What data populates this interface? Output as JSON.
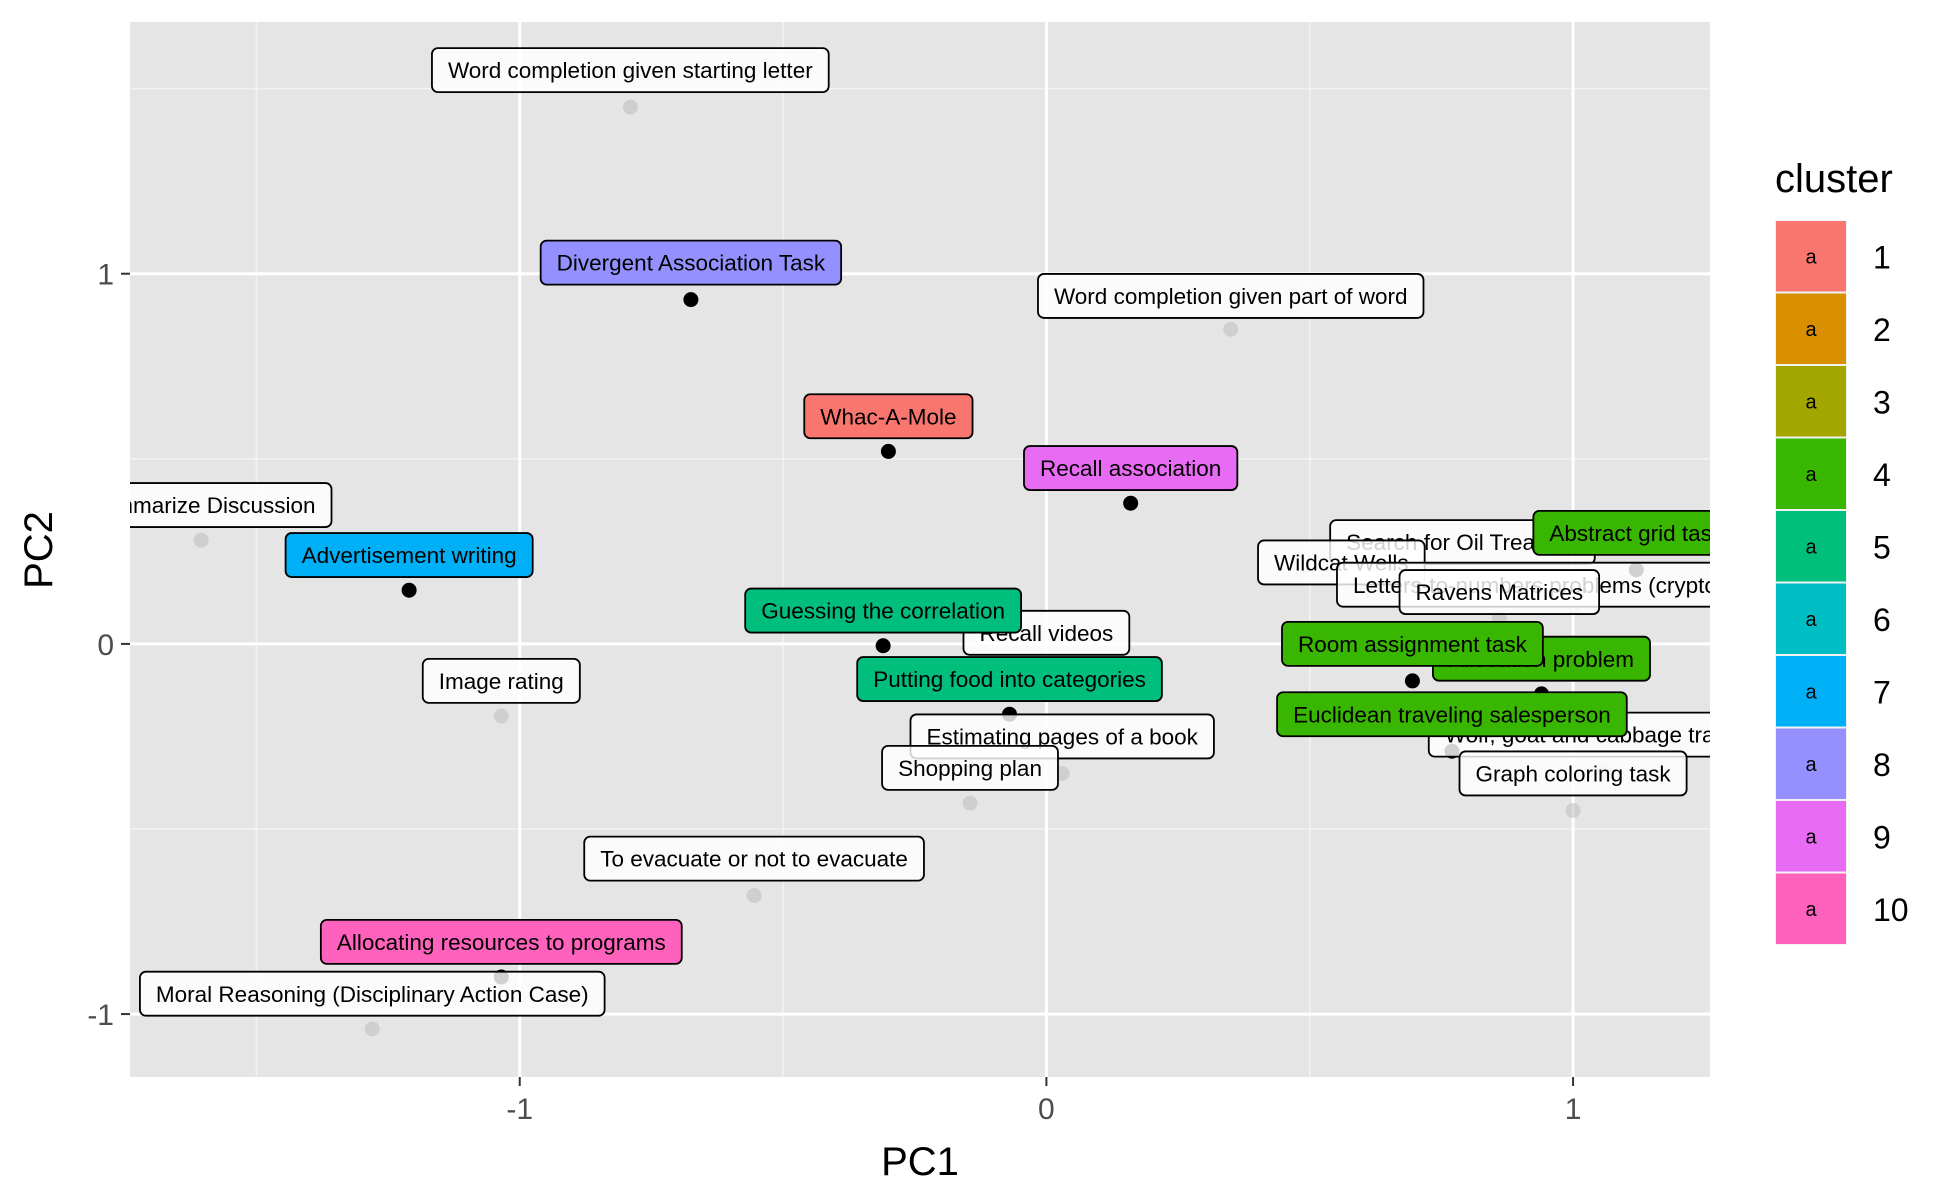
{
  "chart_data": {
    "type": "scatter",
    "xlabel": "PC1",
    "ylabel": "PC2",
    "xlim": [
      -1.74,
      1.26
    ],
    "ylim": [
      -1.17,
      1.68
    ],
    "xticks": [
      -1,
      0,
      1
    ],
    "yticks": [
      -1,
      0,
      1
    ],
    "xtick_labels": [
      "-1",
      "0",
      "1"
    ],
    "ytick_labels": [
      "-1",
      "0",
      "1"
    ],
    "grid": true,
    "legend": {
      "title": "cluster",
      "position": "right",
      "key_glyph": "a",
      "entries": [
        {
          "label": "1",
          "color": "#F8766D"
        },
        {
          "label": "2",
          "color": "#D89000"
        },
        {
          "label": "3",
          "color": "#A3A500"
        },
        {
          "label": "4",
          "color": "#39B600"
        },
        {
          "label": "5",
          "color": "#00BF7D"
        },
        {
          "label": "6",
          "color": "#00BFC4"
        },
        {
          "label": "7",
          "color": "#00B0F6"
        },
        {
          "label": "8",
          "color": "#9590FF"
        },
        {
          "label": "9",
          "color": "#E76BF3"
        },
        {
          "label": "10",
          "color": "#FF62BC"
        }
      ]
    },
    "points": [
      {
        "label": "Word completion given starting letter",
        "x": -0.79,
        "y": 1.45,
        "cluster": null
      },
      {
        "label": "Divergent Association Task",
        "x": -0.675,
        "y": 0.93,
        "cluster": "8"
      },
      {
        "label": "Word completion given part of word",
        "x": 0.35,
        "y": 0.85,
        "cluster": null
      },
      {
        "label": "Whac-A-Mole",
        "x": -0.3,
        "y": 0.52,
        "cluster": "1"
      },
      {
        "label": "Recall association",
        "x": 0.16,
        "y": 0.38,
        "cluster": "9"
      },
      {
        "label": "Summarize Discussion",
        "x": -1.605,
        "y": 0.28,
        "cluster": null
      },
      {
        "label": "Advertisement writing",
        "x": -1.21,
        "y": 0.145,
        "cluster": "7"
      },
      {
        "label": "Abstract grid task",
        "x": 1.12,
        "y": 0.2,
        "cluster": "4"
      },
      {
        "label": "Search for Oil Treasure",
        "x": 0.79,
        "y": 0.18,
        "cluster": null
      },
      {
        "label": "Wildcat Wells",
        "x": 0.7,
        "y": 0.14,
        "cluster": null
      },
      {
        "label": "Letters-to-numbers problems (cryptography)",
        "x": 1.0,
        "y": 0.1,
        "cluster": null
      },
      {
        "label": "Ravens Matrices",
        "x": 0.86,
        "y": 0.07,
        "cluster": null
      },
      {
        "label": "Guessing the correlation",
        "x": -0.31,
        "y": -0.005,
        "cluster": "5"
      },
      {
        "label": "Recall videos",
        "x": 0.0,
        "y": -0.06,
        "cluster": null
      },
      {
        "label": "Room assignment task",
        "x": 0.695,
        "y": -0.1,
        "cluster": "4"
      },
      {
        "label": "Allocation problem",
        "x": 0.94,
        "y": -0.135,
        "cluster": "4"
      },
      {
        "label": "Image rating",
        "x": -1.035,
        "y": -0.195,
        "cluster": null
      },
      {
        "label": "Putting food into categories",
        "x": -0.07,
        "y": -0.19,
        "cluster": "5"
      },
      {
        "label": "Euclidean traveling salesperson",
        "x": 0.77,
        "y": -0.29,
        "cluster": "4"
      },
      {
        "label": "Estimating pages of a book",
        "x": 0.03,
        "y": -0.35,
        "cluster": null
      },
      {
        "label": "Wolf, goat and cabbage transfer",
        "x": 1.06,
        "y": -0.345,
        "cluster": null
      },
      {
        "label": "Shopping plan",
        "x": -0.145,
        "y": -0.43,
        "cluster": null
      },
      {
        "label": "Graph coloring task",
        "x": 1.0,
        "y": -0.45,
        "cluster": null
      },
      {
        "label": "To evacuate or not to evacuate",
        "x": -0.555,
        "y": -0.68,
        "cluster": null
      },
      {
        "label": "Allocating resources to programs",
        "x": -1.035,
        "y": -0.9,
        "cluster": "10"
      },
      {
        "label": "Moral Reasoning (Disciplinary Action Case)",
        "x": -1.28,
        "y": -1.04,
        "cluster": null
      }
    ],
    "labels": [
      {
        "text": "Word completion given starting letter",
        "x": -0.79,
        "y": 1.55,
        "cluster": null
      },
      {
        "text": "Divergent Association Task",
        "x": -0.675,
        "y": 1.03,
        "cluster": "8"
      },
      {
        "text": "Word completion given part of word",
        "x": 0.35,
        "y": 0.94,
        "cluster": null
      },
      {
        "text": "Whac-A-Mole",
        "x": -0.3,
        "y": 0.615,
        "cluster": "1"
      },
      {
        "text": "Recall association",
        "x": 0.16,
        "y": 0.475,
        "cluster": "9"
      },
      {
        "text": "Summarize Discussion",
        "x": -1.605,
        "y": 0.375,
        "cluster": null
      },
      {
        "text": "Advertisement writing",
        "x": -1.21,
        "y": 0.24,
        "cluster": "7"
      },
      {
        "text": "Search for Oil Treasure",
        "x": 0.79,
        "y": 0.275,
        "cluster": null
      },
      {
        "text": "Abstract grid task",
        "x": 1.12,
        "y": 0.3,
        "cluster": "4"
      },
      {
        "text": "Wildcat Wells",
        "x": 0.56,
        "y": 0.22,
        "cluster": null
      },
      {
        "text": "Letters-to-numbers problems (cryptography)",
        "x": 1.0,
        "y": 0.16,
        "cluster": null
      },
      {
        "text": "Ravens Matrices",
        "x": 0.86,
        "y": 0.14,
        "cluster": null
      },
      {
        "text": "Recall videos",
        "x": 0.0,
        "y": 0.03,
        "cluster": null
      },
      {
        "text": "Guessing the correlation",
        "x": -0.31,
        "y": 0.09,
        "cluster": "5"
      },
      {
        "text": "Allocation problem",
        "x": 0.94,
        "y": -0.04,
        "cluster": "4"
      },
      {
        "text": "Room assignment task",
        "x": 0.695,
        "y": 0.0,
        "cluster": "4"
      },
      {
        "text": "Image rating",
        "x": -1.035,
        "y": -0.1,
        "cluster": null
      },
      {
        "text": "Putting food into categories",
        "x": -0.07,
        "y": -0.095,
        "cluster": "5"
      },
      {
        "text": "Estimating pages of a book",
        "x": 0.03,
        "y": -0.25,
        "cluster": null
      },
      {
        "text": "Wolf, goat and cabbage transfer",
        "x": 1.06,
        "y": -0.245,
        "cluster": null
      },
      {
        "text": "Euclidean traveling salesperson",
        "x": 0.77,
        "y": -0.19,
        "cluster": "4"
      },
      {
        "text": "Shopping plan",
        "x": -0.145,
        "y": -0.335,
        "cluster": null
      },
      {
        "text": "Graph coloring task",
        "x": 1.0,
        "y": -0.35,
        "cluster": null
      },
      {
        "text": "To evacuate or not to evacuate",
        "x": -0.555,
        "y": -0.58,
        "cluster": null
      },
      {
        "text": "Allocating resources to programs",
        "x": -1.035,
        "y": -0.805,
        "cluster": "10"
      },
      {
        "text": "Moral Reasoning (Disciplinary Action Case)",
        "x": -1.28,
        "y": -0.945,
        "cluster": null
      }
    ]
  }
}
